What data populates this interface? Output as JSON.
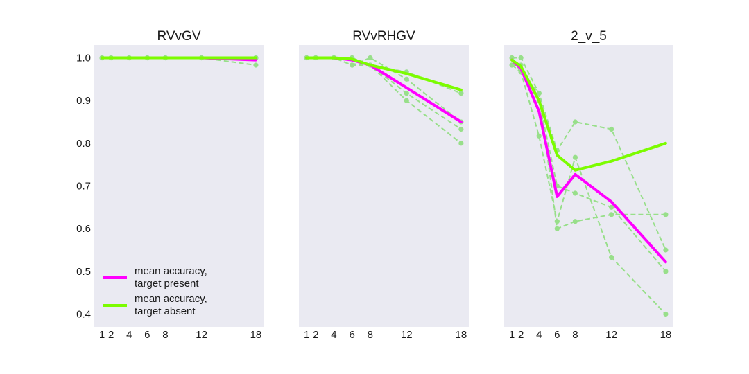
{
  "chart_data": [
    {
      "type": "line",
      "title": "RVvGV",
      "xlabel": "",
      "ylabel": "",
      "x": [
        1,
        2,
        4,
        6,
        8,
        12,
        18
      ],
      "xticks": [
        1,
        2,
        4,
        6,
        8,
        12,
        18
      ],
      "yticks": [
        0.4,
        0.5,
        0.6,
        0.7,
        0.8,
        0.9,
        1.0
      ],
      "ylim": [
        0.37,
        1.03
      ],
      "series": [
        {
          "name": "mean accuracy, target present",
          "color": "#ff00ff",
          "style": "solid",
          "values": [
            1.0,
            1.0,
            1.0,
            1.0,
            1.0,
            1.0,
            0.995
          ]
        },
        {
          "name": "mean accuracy, target absent",
          "color": "#7cfc00",
          "style": "solid",
          "values": [
            1.0,
            1.0,
            1.0,
            1.0,
            1.0,
            1.0,
            1.0
          ]
        },
        {
          "color": "#98df8a",
          "style": "dashed",
          "values": [
            1.0,
            1.0,
            1.0,
            1.0,
            1.0,
            1.0,
            0.983
          ]
        },
        {
          "color": "#98df8a",
          "style": "dashed",
          "values": [
            1.0,
            1.0,
            1.0,
            1.0,
            1.0,
            1.0,
            1.0
          ]
        },
        {
          "color": "#98df8a",
          "style": "dashed",
          "values": [
            1.0,
            1.0,
            1.0,
            1.0,
            1.0,
            1.0,
            1.0
          ]
        },
        {
          "color": "#98df8a",
          "style": "dashed",
          "values": [
            1.0,
            1.0,
            1.0,
            1.0,
            1.0,
            1.0,
            1.0
          ]
        }
      ],
      "legend": {
        "placement": "lower-left",
        "entries": [
          "mean accuracy,\ntarget present",
          "mean accuracy,\ntarget absent"
        ]
      },
      "grid": false
    },
    {
      "type": "line",
      "title": "RVvRHGV",
      "xlabel": "",
      "ylabel": "",
      "x": [
        1,
        2,
        4,
        6,
        8,
        12,
        18
      ],
      "xticks": [
        1,
        2,
        4,
        6,
        8,
        12,
        18
      ],
      "yticks": [],
      "ylim": [
        0.37,
        1.03
      ],
      "series": [
        {
          "name": "mean accuracy, target present",
          "color": "#ff00ff",
          "style": "solid",
          "values": [
            1.0,
            1.0,
            1.0,
            0.995,
            0.983,
            0.93,
            0.85
          ]
        },
        {
          "name": "mean accuracy, target absent",
          "color": "#7cfc00",
          "style": "solid",
          "values": [
            1.0,
            1.0,
            1.0,
            0.997,
            0.983,
            0.963,
            0.925
          ]
        },
        {
          "color": "#98df8a",
          "style": "dashed",
          "values": [
            1.0,
            1.0,
            1.0,
            0.983,
            0.983,
            0.9,
            0.8
          ]
        },
        {
          "color": "#98df8a",
          "style": "dashed",
          "values": [
            1.0,
            1.0,
            1.0,
            1.0,
            0.983,
            0.917,
            0.833
          ]
        },
        {
          "color": "#98df8a",
          "style": "dashed",
          "values": [
            1.0,
            1.0,
            1.0,
            0.983,
            1.0,
            0.95,
            0.85
          ]
        },
        {
          "color": "#98df8a",
          "style": "dashed",
          "values": [
            1.0,
            1.0,
            1.0,
            1.0,
            0.983,
            0.967,
            0.917
          ]
        }
      ],
      "grid": false
    },
    {
      "type": "line",
      "title": "2_v_5",
      "xlabel": "",
      "ylabel": "",
      "x": [
        1,
        2,
        4,
        6,
        8,
        12,
        18
      ],
      "xticks": [
        1,
        2,
        4,
        6,
        8,
        12,
        18
      ],
      "yticks": [],
      "ylim": [
        0.37,
        1.03
      ],
      "series": [
        {
          "name": "mean accuracy, target present",
          "color": "#ff00ff",
          "style": "solid",
          "values": [
            0.995,
            0.975,
            0.875,
            0.675,
            0.727,
            0.663,
            0.522
          ]
        },
        {
          "name": "mean accuracy, target absent",
          "color": "#7cfc00",
          "style": "solid",
          "values": [
            0.995,
            0.98,
            0.9,
            0.772,
            0.737,
            0.758,
            0.8
          ]
        },
        {
          "color": "#98df8a",
          "style": "dashed",
          "values": [
            1.0,
            0.967,
            0.817,
            0.617,
            0.767,
            0.533,
            0.4
          ]
        },
        {
          "color": "#98df8a",
          "style": "dashed",
          "values": [
            0.983,
            0.967,
            0.917,
            0.6,
            0.617,
            0.633,
            0.633
          ]
        },
        {
          "color": "#98df8a",
          "style": "dashed",
          "values": [
            1.0,
            1.0,
            0.917,
            0.783,
            0.85,
            0.833,
            0.55
          ]
        },
        {
          "color": "#98df8a",
          "style": "dashed",
          "values": [
            0.983,
            0.983,
            0.9,
            0.7,
            0.683,
            0.65,
            0.5
          ]
        }
      ],
      "grid": false
    }
  ]
}
